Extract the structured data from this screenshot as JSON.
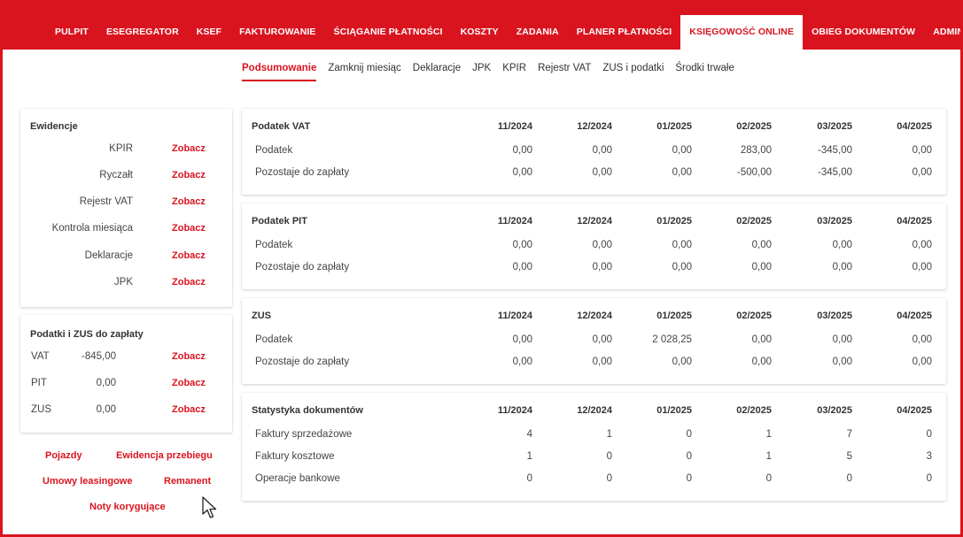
{
  "nav": {
    "items": [
      "PULPIT",
      "ESEGREGATOR",
      "KSEF",
      "FAKTUROWANIE",
      "ŚCIĄGANIE PŁATNOŚCI",
      "KOSZTY",
      "ZADANIA",
      "PLANER PŁATNOŚCI",
      "KSIĘGOWOŚĆ ONLINE",
      "OBIEG DOKUMENTÓW",
      "ADMINISTRACJA"
    ],
    "active_index": 8
  },
  "subtabs": {
    "items": [
      "Podsumowanie",
      "Zamknij miesiąc",
      "Deklaracje",
      "JPK",
      "KPIR",
      "Rejestr VAT",
      "ZUS i podatki",
      "Środki trwałe"
    ],
    "active_index": 0
  },
  "ewidencje": {
    "title": "Ewidencje",
    "link_label": "Zobacz",
    "items": [
      "KPIR",
      "Ryczałt",
      "Rejestr VAT",
      "Kontrola miesiąca",
      "Deklaracje",
      "JPK"
    ]
  },
  "taxes": {
    "title": "Podatki i ZUS do zapłaty",
    "link_label": "Zobacz",
    "items": [
      {
        "label": "VAT",
        "value": "-845,00"
      },
      {
        "label": "PIT",
        "value": "0,00"
      },
      {
        "label": "ZUS",
        "value": "0,00"
      }
    ]
  },
  "extra_links": {
    "pojazdy": "Pojazdy",
    "ewidencja_przebiegu": "Ewidencja przebiegu",
    "umowy_leasingowe": "Umowy leasingowe",
    "remanent": "Remanent",
    "noty_korygujace": "Noty korygujące"
  },
  "periods": [
    "11/2024",
    "12/2024",
    "01/2025",
    "02/2025",
    "03/2025",
    "04/2025"
  ],
  "tables": [
    {
      "title": "Podatek VAT",
      "rows": [
        {
          "label": "Podatek",
          "values": [
            "0,00",
            "0,00",
            "0,00",
            "283,00",
            "-345,00",
            "0,00"
          ]
        },
        {
          "label": "Pozostaje do zapłaty",
          "values": [
            "0,00",
            "0,00",
            "0,00",
            "-500,00",
            "-345,00",
            "0,00"
          ]
        }
      ]
    },
    {
      "title": "Podatek PIT",
      "rows": [
        {
          "label": "Podatek",
          "values": [
            "0,00",
            "0,00",
            "0,00",
            "0,00",
            "0,00",
            "0,00"
          ]
        },
        {
          "label": "Pozostaje do zapłaty",
          "values": [
            "0,00",
            "0,00",
            "0,00",
            "0,00",
            "0,00",
            "0,00"
          ]
        }
      ]
    },
    {
      "title": "ZUS",
      "rows": [
        {
          "label": "Podatek",
          "values": [
            "0,00",
            "0,00",
            "2 028,25",
            "0,00",
            "0,00",
            "0,00"
          ]
        },
        {
          "label": "Pozostaje do zapłaty",
          "values": [
            "0,00",
            "0,00",
            "0,00",
            "0,00",
            "0,00",
            "0,00"
          ]
        }
      ]
    },
    {
      "title": "Statystyka dokumentów",
      "rows": [
        {
          "label": "Faktury sprzedażowe",
          "values": [
            "4",
            "1",
            "0",
            "1",
            "7",
            "0"
          ]
        },
        {
          "label": "Faktury kosztowe",
          "values": [
            "1",
            "0",
            "0",
            "1",
            "5",
            "3"
          ]
        },
        {
          "label": "Operacje bankowe",
          "values": [
            "0",
            "0",
            "0",
            "0",
            "0",
            "0"
          ]
        }
      ]
    }
  ],
  "colors": {
    "accent": "#d9141f"
  },
  "icons": {
    "cursor": "mouse-pointer-icon"
  }
}
